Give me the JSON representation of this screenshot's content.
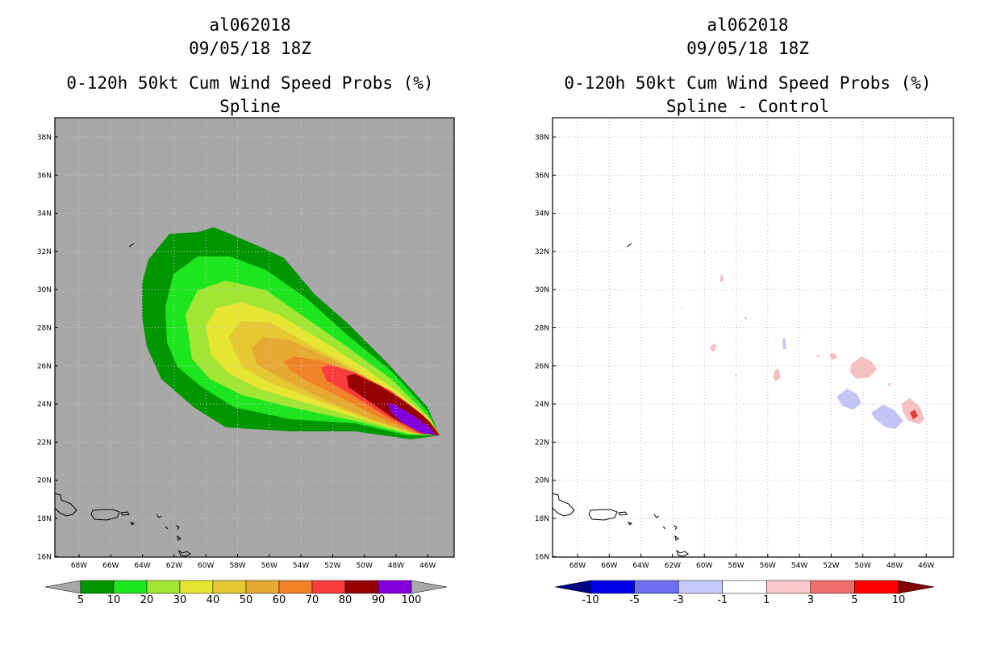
{
  "left_panel": {
    "title_lines": [
      "al062018",
      "09/05/18 18Z",
      "0-120h 50kt Cum Wind Speed Probs (%)",
      "Spline"
    ],
    "fill_color": "#a8a8a8",
    "lat_labels": [
      "38N",
      "36N",
      "34N",
      "32N",
      "30N",
      "28N",
      "26N",
      "24N",
      "22N",
      "20N",
      "18N",
      "16N"
    ],
    "lon_labels": [
      "68W",
      "66W",
      "64W",
      "62W",
      "60W",
      "58W",
      "56W",
      "54W",
      "52W",
      "50W",
      "48W",
      "46W"
    ],
    "colorbar": {
      "left_cap": "#a8a8a8",
      "right_cap": "#a8a8a8",
      "colors": [
        "#009600",
        "#1ee61e",
        "#a0e632",
        "#e6e632",
        "#e6c832",
        "#e6aa32",
        "#f08228",
        "#fa3c3c",
        "#960000",
        "#8200dc"
      ],
      "labels": [
        "5",
        "10",
        "20",
        "30",
        "40",
        "50",
        "60",
        "70",
        "80",
        "90",
        "100"
      ]
    },
    "contours": [
      {
        "level": "5-10",
        "color": "#009600"
      },
      {
        "level": "10-20",
        "color": "#1ee61e"
      },
      {
        "level": "20-30",
        "color": "#a0e632"
      },
      {
        "level": "30-40",
        "color": "#e6e632"
      },
      {
        "level": "40-50",
        "color": "#e6c832"
      },
      {
        "level": "50-60",
        "color": "#e6aa32"
      },
      {
        "level": "60-70",
        "color": "#f08228"
      },
      {
        "level": "70-80",
        "color": "#fa3c3c"
      },
      {
        "level": "80-90",
        "color": "#960000"
      },
      {
        "level": "90-100",
        "color": "#8200dc"
      }
    ]
  },
  "right_panel": {
    "title_lines": [
      "al062018",
      "09/05/18 18Z",
      "0-120h 50kt Cum Wind Speed Probs (%)",
      "Spline - Control"
    ],
    "lat_labels": [
      "38N",
      "36N",
      "34N",
      "32N",
      "30N",
      "28N",
      "26N",
      "24N",
      "22N",
      "20N",
      "18N",
      "16N"
    ],
    "lon_labels": [
      "68W",
      "66W",
      "64W",
      "62W",
      "60W",
      "58W",
      "56W",
      "54W",
      "52W",
      "50W",
      "48W",
      "46W"
    ],
    "colorbar": {
      "left_cap": "#000082",
      "right_cap": "#820000",
      "colors": [
        "#0000e6",
        "#6e6ef0",
        "#c8c8fa",
        "#ffffff",
        "#fac8c8",
        "#f06e6e",
        "#ff0000"
      ],
      "labels": [
        "-10",
        "-5",
        "-3",
        "-1",
        "1",
        "3",
        "5",
        "10"
      ]
    },
    "positive_color": "#f5c0c0",
    "negative_color": "#c4c4f5",
    "strong_positive_color": "#e03c3c"
  }
}
